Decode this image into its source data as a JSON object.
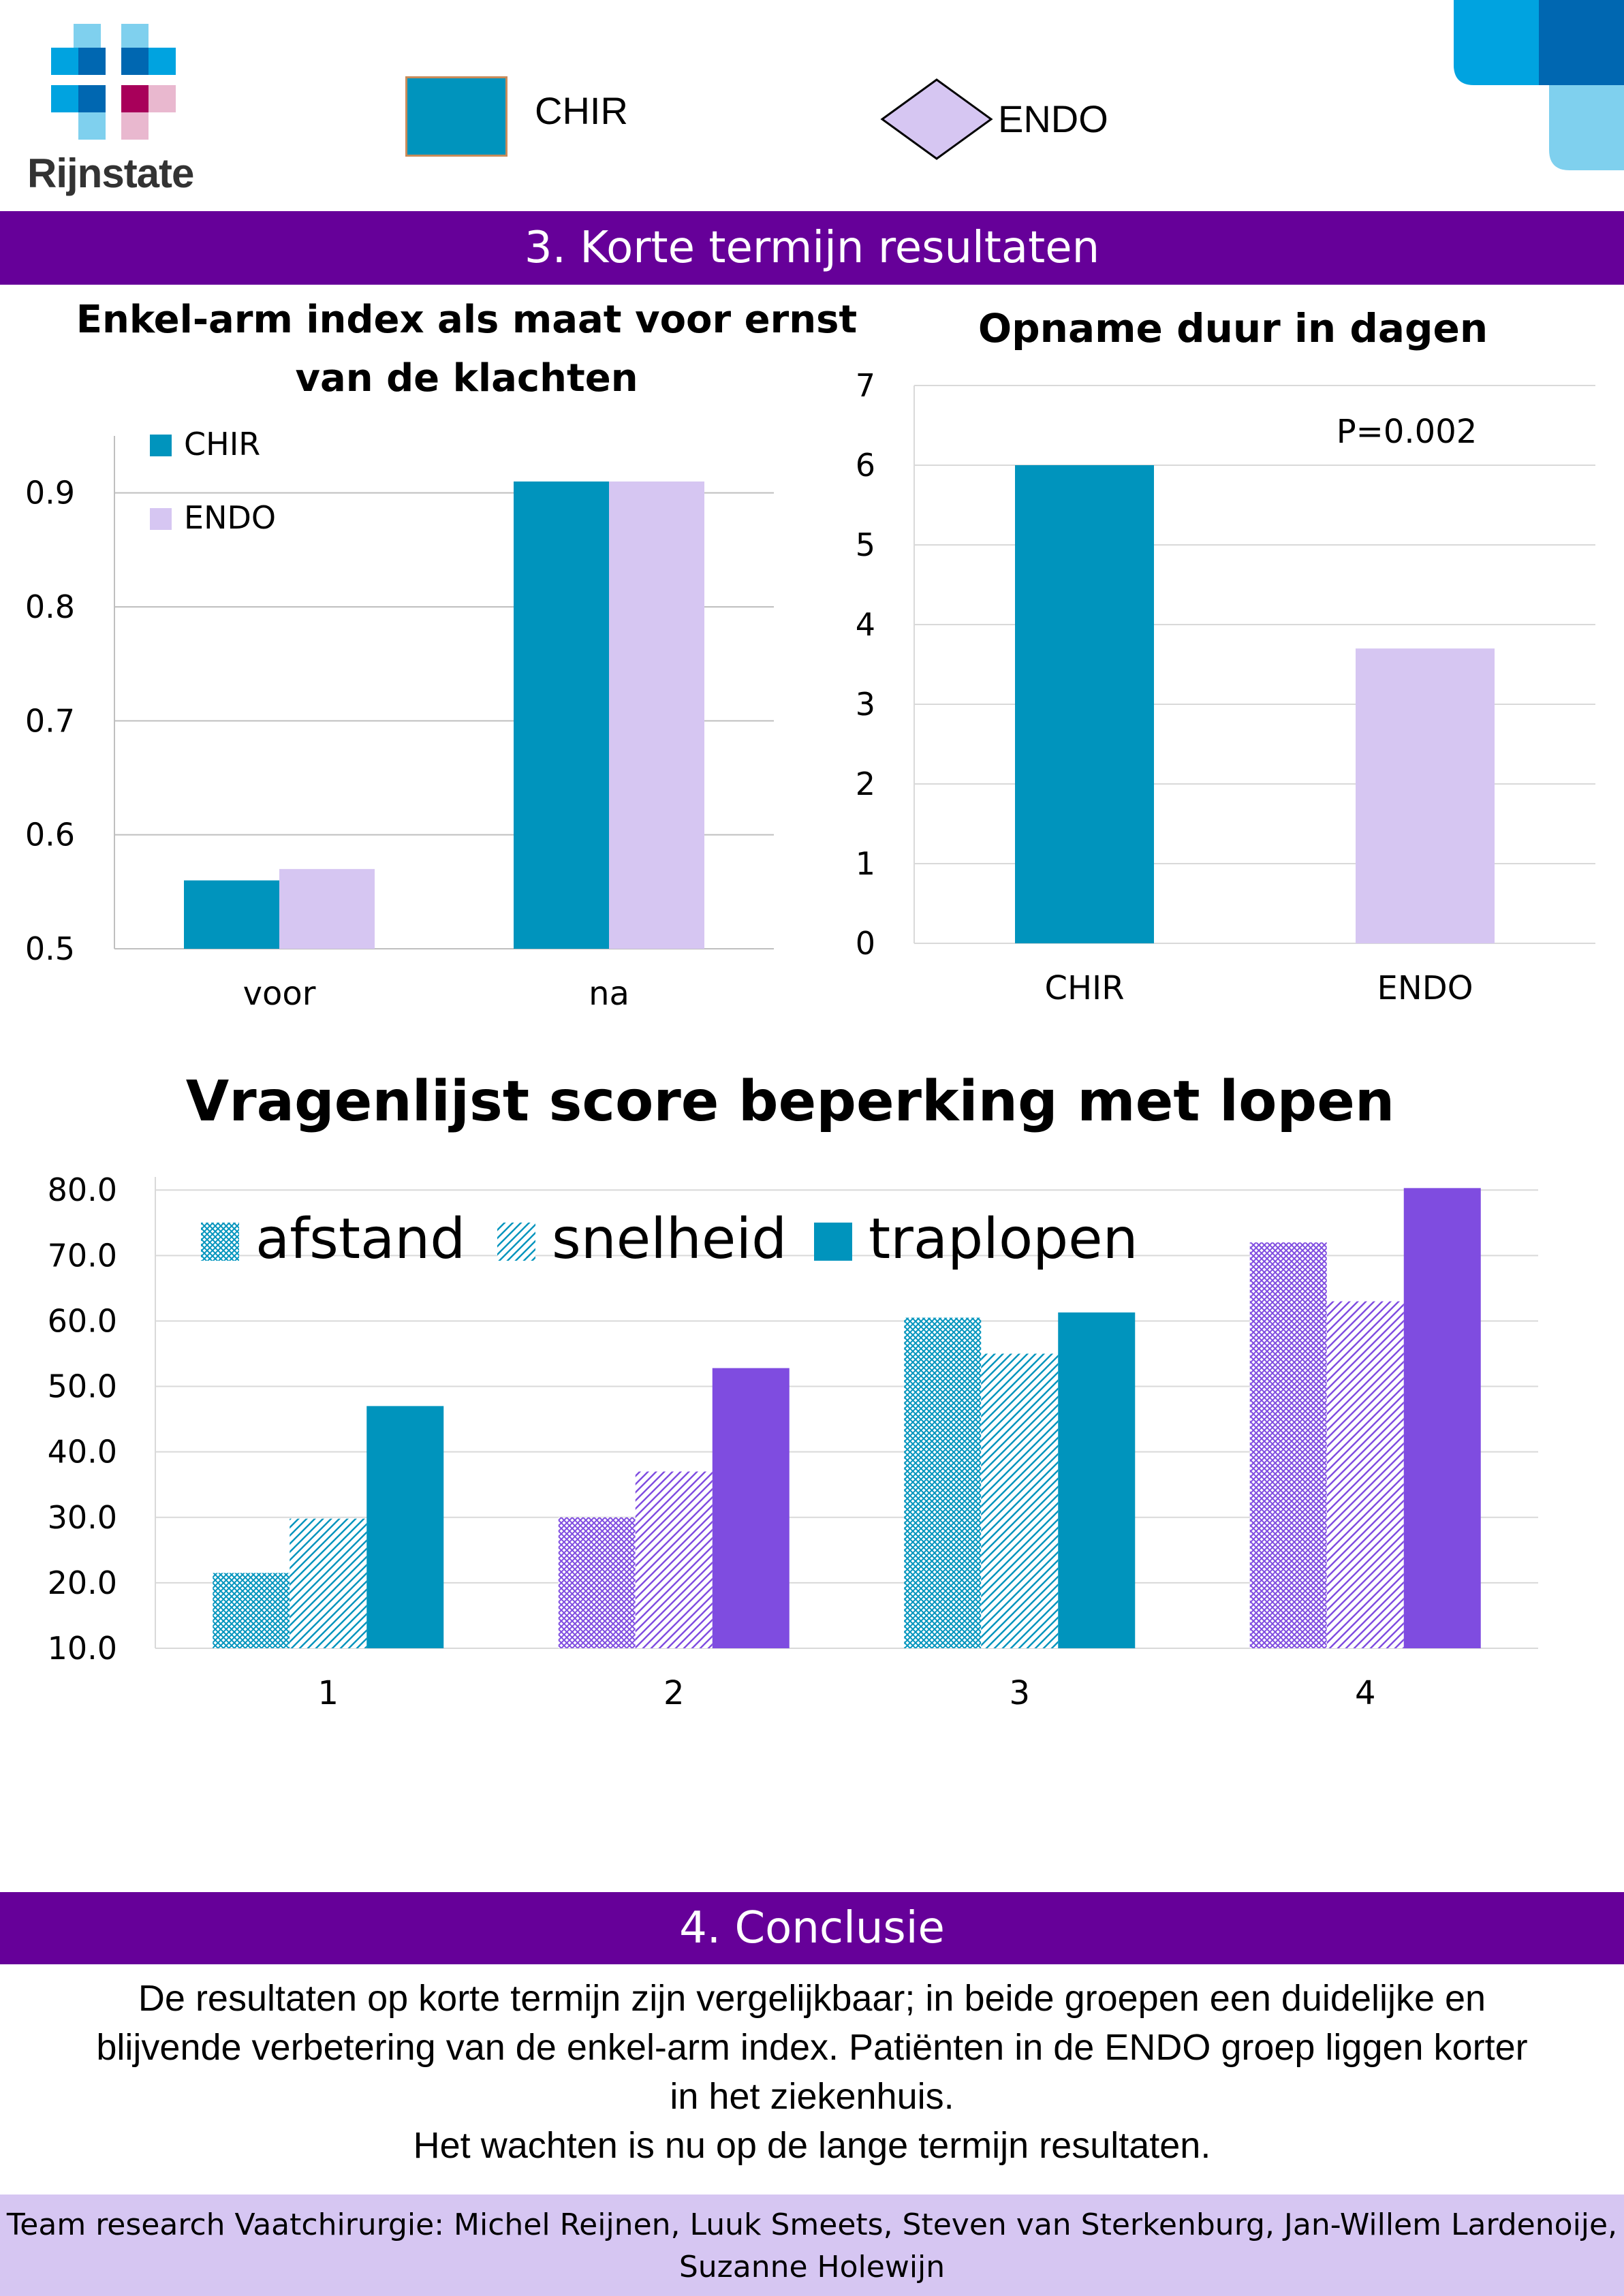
{
  "header": {
    "logo_text": "Rijnstate",
    "legend": [
      {
        "label": "CHIR",
        "color": "#0094bd"
      },
      {
        "label": "ENDO",
        "color": "#d6c6f2"
      }
    ]
  },
  "section_results": {
    "title": "3. Korte termijn resultaten"
  },
  "chart_data": [
    {
      "type": "bar",
      "title_lines": [
        "Enkel-arm index als maat voor ernst",
        "van de klachten"
      ],
      "categories": [
        "voor",
        "na"
      ],
      "series": [
        {
          "name": "CHIR",
          "values": [
            0.56,
            0.91
          ],
          "color": "#0094bd"
        },
        {
          "name": "ENDO",
          "values": [
            0.57,
            0.91
          ],
          "color": "#d6c6f2"
        }
      ],
      "ylim": [
        0.5,
        0.95
      ],
      "yticks": [
        "0.5",
        "0.6",
        "0.7",
        "0.8",
        "0.9"
      ],
      "grid": true,
      "legend_position": "top-left"
    },
    {
      "type": "bar",
      "title": "Opname duur in dagen",
      "categories": [
        "CHIR",
        "ENDO"
      ],
      "values": [
        6.0,
        3.7
      ],
      "colors": [
        "#0094bd",
        "#d6c6f2"
      ],
      "ylim": [
        0,
        7
      ],
      "yticks": [
        "0",
        "1",
        "2",
        "3",
        "4",
        "5",
        "6",
        "7"
      ],
      "annotation": "P=0.002",
      "grid": true
    },
    {
      "type": "bar",
      "title": "Vragenlijst score beperking met lopen",
      "categories": [
        "1",
        "2",
        "3",
        "4"
      ],
      "series": [
        {
          "name": "afstand",
          "values": [
            21.5,
            30.0,
            60.5,
            72.0
          ],
          "pattern": "crosshatch"
        },
        {
          "name": "snelheid",
          "values": [
            29.8,
            37.0,
            55.0,
            63.0
          ],
          "pattern": "diagonal"
        },
        {
          "name": "traplopen",
          "values": [
            47.0,
            52.8,
            61.3,
            80.3
          ],
          "pattern": "solid"
        }
      ],
      "category_colors": [
        "#0094bd",
        "#7f4ce0",
        "#0094bd",
        "#7f4ce0"
      ],
      "ylim": [
        10,
        82
      ],
      "yticks": [
        "10.0",
        "20.0",
        "30.0",
        "40.0",
        "50.0",
        "60.0",
        "70.0",
        "80.0"
      ],
      "grid": true,
      "legend_position": "top-left"
    }
  ],
  "section_conclusion": {
    "title": "4. Conclusie",
    "lines": [
      "De resultaten op korte termijn zijn vergelijkbaar; in beide groepen een duidelijke en",
      "blijvende verbetering van de enkel-arm index. Patiënten in de ENDO groep liggen korter",
      "in het ziekenhuis.",
      "Het wachten is nu op de lange termijn resultaten."
    ]
  },
  "footer": {
    "lines": [
      "Team research Vaatchirurgie: Michel Reijnen, Luuk Smeets, Steven van Sterkenburg, Jan-Willem Lardenoije,",
      "Suzanne Holewijn"
    ]
  }
}
